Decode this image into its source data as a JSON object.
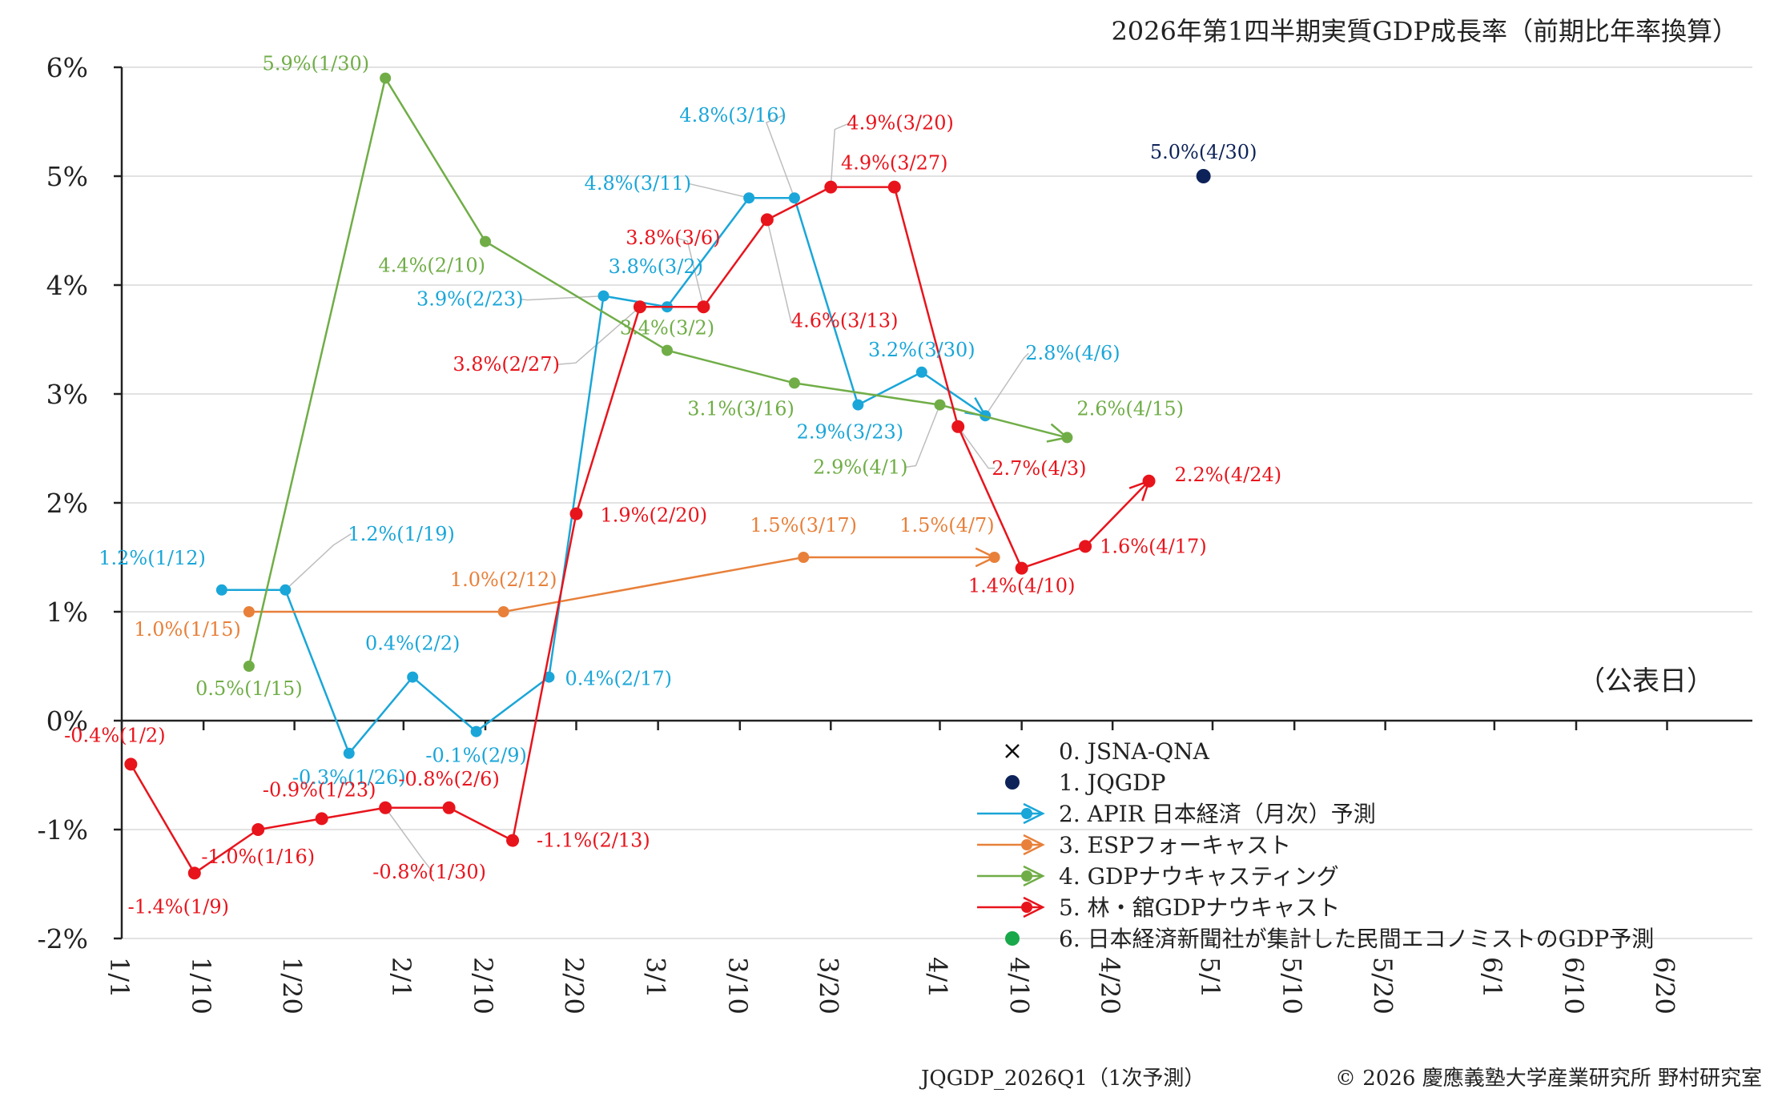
{
  "chart_data": {
    "type": "line",
    "title": "2026年第1四半期実質GDP成長率（前期比年率換算）",
    "x_unit_label": "（公表日）",
    "footer_left": "JQGDP_2026Q1（1次予測）",
    "footer_right": "© 2026 慶應義塾大学産業研究所 野村研究室",
    "ylim": [
      -2,
      6
    ],
    "y_ticks": [
      {
        "value": 6,
        "label": "6%"
      },
      {
        "value": 5,
        "label": "5%"
      },
      {
        "value": 4,
        "label": "4%"
      },
      {
        "value": 3,
        "label": "3%"
      },
      {
        "value": 2,
        "label": "2%"
      },
      {
        "value": 1,
        "label": "1%"
      },
      {
        "value": 0,
        "label": "0%"
      },
      {
        "value": -1,
        "label": "-1%"
      },
      {
        "value": -2,
        "label": "-2%"
      }
    ],
    "x_ticks": [
      "1/1",
      "1/10",
      "1/20",
      "2/1",
      "2/10",
      "2/20",
      "3/1",
      "3/10",
      "3/20",
      "4/1",
      "4/10",
      "4/20",
      "5/1",
      "5/10",
      "5/20",
      "6/1",
      "6/10",
      "6/20"
    ],
    "grid": true,
    "legend_position": "bottom-right",
    "series": [
      {
        "name": "0. JSNA-QNA",
        "color": "#111111",
        "marker": "x",
        "points": []
      },
      {
        "name": "1. JQGDP",
        "color": "#0d2258",
        "marker": "dot",
        "points": [
          {
            "x": "4/30",
            "y": 5.0,
            "label": "5.0%(4/30)"
          }
        ]
      },
      {
        "name": "2. APIR 日本経済（月次）予測",
        "color": "#1aa6d8",
        "marker": "dot",
        "arrow": true,
        "points": [
          {
            "x": "1/12",
            "y": 1.2,
            "label": "1.2%(1/12)"
          },
          {
            "x": "1/19",
            "y": 1.2,
            "label": "1.2%(1/19)"
          },
          {
            "x": "1/26",
            "y": -0.3,
            "label": "-0.3%(1/26)"
          },
          {
            "x": "2/2",
            "y": 0.4,
            "label": "0.4%(2/2)"
          },
          {
            "x": "2/9",
            "y": -0.1,
            "label": "-0.1%(2/9)"
          },
          {
            "x": "2/17",
            "y": 0.4,
            "label": "0.4%(2/17)"
          },
          {
            "x": "2/23",
            "y": 3.9,
            "label": "3.9%(2/23)"
          },
          {
            "x": "3/2",
            "y": 3.8,
            "label": "3.8%(3/2)"
          },
          {
            "x": "3/11",
            "y": 4.8,
            "label": "4.8%(3/11)"
          },
          {
            "x": "3/16",
            "y": 4.8,
            "label": "4.8%(3/16)"
          },
          {
            "x": "3/23",
            "y": 2.9,
            "label": "2.9%(3/23)"
          },
          {
            "x": "3/30",
            "y": 3.2,
            "label": "3.2%(3/30)"
          },
          {
            "x": "4/6",
            "y": 2.8,
            "label": "2.8%(4/6)"
          }
        ]
      },
      {
        "name": "3. ESPフォーキャスト",
        "color": "#e8803a",
        "marker": "dot",
        "arrow": true,
        "points": [
          {
            "x": "1/15",
            "y": 1.0,
            "label": "1.0%(1/15)"
          },
          {
            "x": "2/12",
            "y": 1.0,
            "label": "1.0%(2/12)"
          },
          {
            "x": "3/17",
            "y": 1.5,
            "label": "1.5%(3/17)"
          },
          {
            "x": "4/7",
            "y": 1.5,
            "label": "1.5%(4/7)"
          }
        ]
      },
      {
        "name": "4. GDPナウキャスティング",
        "color": "#70ad47",
        "marker": "dot",
        "arrow": true,
        "points": [
          {
            "x": "1/15",
            "y": 0.5,
            "label": "0.5%(1/15)"
          },
          {
            "x": "1/30",
            "y": 5.9,
            "label": "5.9%(1/30)"
          },
          {
            "x": "2/10",
            "y": 4.4,
            "label": "4.4%(2/10)"
          },
          {
            "x": "3/2",
            "y": 3.4,
            "label": "3.4%(3/2)"
          },
          {
            "x": "3/16",
            "y": 3.1,
            "label": "3.1%(3/16)"
          },
          {
            "x": "4/1",
            "y": 2.9,
            "label": "2.9%(4/1)"
          },
          {
            "x": "4/15",
            "y": 2.6,
            "label": "2.6%(4/15)"
          }
        ]
      },
      {
        "name": "5. 林・舘GDPナウキャスト",
        "color": "#e8141c",
        "marker": "dot",
        "arrow": true,
        "points": [
          {
            "x": "1/2",
            "y": -0.4,
            "label": "-0.4%(1/2)"
          },
          {
            "x": "1/9",
            "y": -1.4,
            "label": "-1.4%(1/9)"
          },
          {
            "x": "1/16",
            "y": -1.0,
            "label": "-1.0%(1/16)"
          },
          {
            "x": "1/23",
            "y": -0.9,
            "label": "-0.9%(1/23)"
          },
          {
            "x": "1/30",
            "y": -0.8,
            "label": "-0.8%(1/30)"
          },
          {
            "x": "2/6",
            "y": -0.8,
            "label": "-0.8%(2/6)"
          },
          {
            "x": "2/13",
            "y": -1.1,
            "label": "-1.1%(2/13)"
          },
          {
            "x": "2/20",
            "y": 1.9,
            "label": "1.9%(2/20)"
          },
          {
            "x": "2/27",
            "y": 3.8,
            "label": "3.8%(2/27)"
          },
          {
            "x": "3/6",
            "y": 3.8,
            "label": "3.8%(3/6)"
          },
          {
            "x": "3/13",
            "y": 4.6,
            "label": "4.6%(3/13)"
          },
          {
            "x": "3/20",
            "y": 4.9,
            "label": "4.9%(3/20)"
          },
          {
            "x": "3/27",
            "y": 4.9,
            "label": "4.9%(3/27)"
          },
          {
            "x": "4/3",
            "y": 2.7,
            "label": "2.7%(4/3)"
          },
          {
            "x": "4/10",
            "y": 1.4,
            "label": "1.4%(4/10)"
          },
          {
            "x": "4/17",
            "y": 1.6,
            "label": "1.6%(4/17)"
          },
          {
            "x": "4/24",
            "y": 2.2,
            "label": "2.2%(4/24)"
          }
        ]
      },
      {
        "name": "6. 日本経済新聞社が集計した民間エコノミストのGDP予測",
        "color": "#19a84a",
        "marker": "dot",
        "points": []
      }
    ]
  }
}
